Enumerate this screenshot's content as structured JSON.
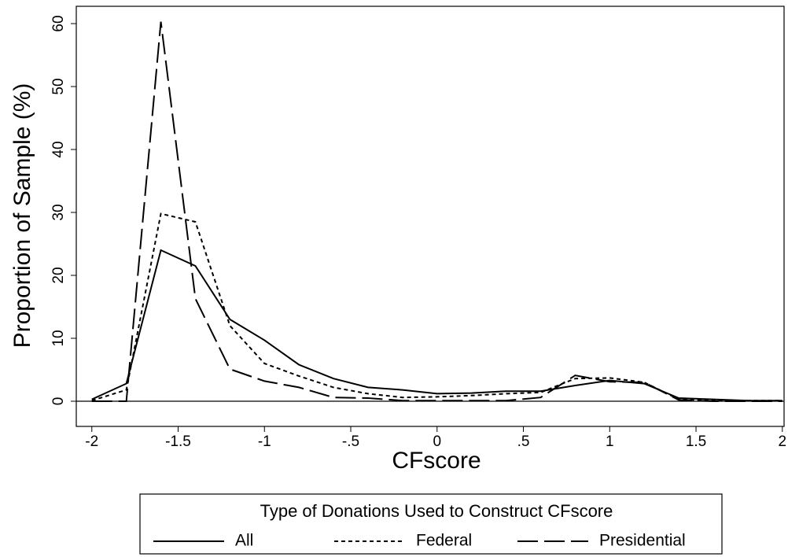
{
  "chart_data": {
    "type": "line",
    "xlabel": "CFscore",
    "ylabel": "Proportion of Sample (%)",
    "x": [
      -2,
      -1.8,
      -1.6,
      -1.4,
      -1.2,
      -1,
      -0.8,
      -0.6,
      -0.4,
      -0.2,
      0,
      0.2,
      0.4,
      0.6,
      0.8,
      1,
      1.2,
      1.4,
      1.6,
      1.8,
      2
    ],
    "series": [
      {
        "name": "All",
        "color": "#000000",
        "dash": "solid",
        "values": [
          0.3,
          2.8,
          24,
          21.5,
          13,
          9.7,
          5.8,
          3.6,
          2.2,
          1.8,
          1.2,
          1.3,
          1.6,
          1.6,
          2.5,
          3.3,
          2.8,
          0.5,
          0.3,
          0.1,
          0.1
        ]
      },
      {
        "name": "Federal",
        "color": "#000000",
        "dash": "short",
        "values": [
          0.1,
          1.8,
          29.8,
          28.5,
          12,
          6,
          4,
          2.2,
          1.2,
          0.6,
          0.7,
          0.9,
          1.2,
          1.4,
          3.6,
          3.7,
          3,
          0.3,
          0.1,
          0.1,
          0.1
        ]
      },
      {
        "name": "Presidential",
        "color": "#000000",
        "dash": "long",
        "values": [
          0,
          0,
          60.3,
          16.3,
          5.1,
          3.2,
          2.2,
          0.6,
          0.5,
          0.1,
          0.1,
          0.1,
          0.1,
          0.6,
          4.1,
          3.1,
          3,
          0.2,
          0,
          0,
          0
        ]
      }
    ],
    "xlim": [
      -2.09,
      2.01
    ],
    "ylim": [
      -4,
      62.75
    ],
    "xticks": [
      -2,
      -1.5,
      -1,
      {
        "value": -0.5,
        "label": "-.5"
      },
      0,
      {
        "value": 0.5,
        "label": ".5"
      },
      1,
      1.5,
      2
    ],
    "yticks": [
      0,
      10,
      20,
      30,
      40,
      50,
      60
    ],
    "reference_line": 0,
    "legend_title": "Type of Donations Used to Construct CFscore",
    "legend_position": "bottom"
  }
}
